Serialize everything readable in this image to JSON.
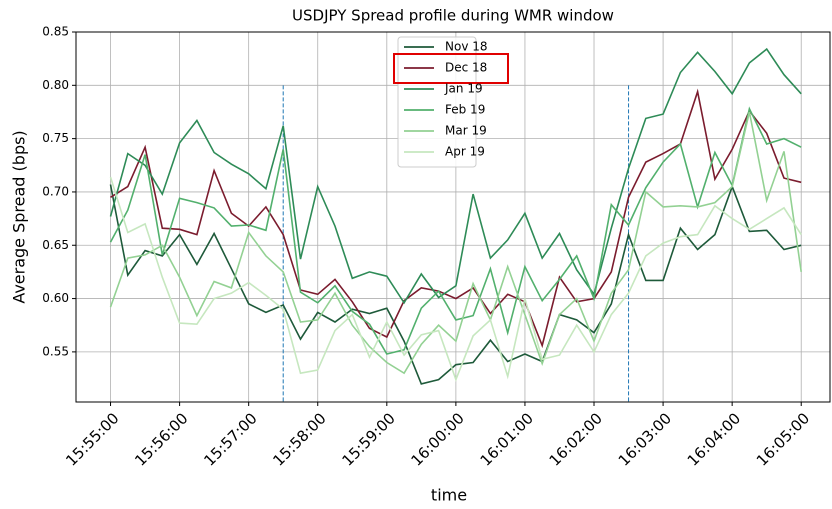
{
  "chart_data": {
    "type": "line",
    "title": "USDJPY Spread profile during WMR window",
    "x_label": "time",
    "y_label": "Average Spread (bps)",
    "x": [
      "15:55:00",
      "15:55:15",
      "15:55:30",
      "15:55:45",
      "15:56:00",
      "15:56:15",
      "15:56:30",
      "15:56:45",
      "15:57:00",
      "15:57:15",
      "15:57:30",
      "15:57:45",
      "15:58:00",
      "15:58:15",
      "15:58:30",
      "15:58:45",
      "15:59:00",
      "15:59:15",
      "15:59:30",
      "15:59:45",
      "16:00:00",
      "16:00:15",
      "16:00:30",
      "16:00:45",
      "16:01:00",
      "16:01:15",
      "16:01:30",
      "16:01:45",
      "16:02:00",
      "16:02:15",
      "16:02:30",
      "16:02:45",
      "16:03:00",
      "16:03:15",
      "16:03:30",
      "16:03:45",
      "16:04:00",
      "16:04:15",
      "16:04:30",
      "16:04:45",
      "16:05:00"
    ],
    "series": [
      {
        "name": "Nov 18",
        "color": "#1e5a3a",
        "values": [
          0.707,
          0.622,
          0.645,
          0.64,
          0.66,
          0.632,
          0.661,
          0.628,
          0.595,
          0.587,
          0.594,
          0.562,
          0.587,
          0.578,
          0.59,
          0.586,
          0.591,
          0.56,
          0.52,
          0.524,
          0.538,
          0.54,
          0.561,
          0.541,
          0.548,
          0.541,
          0.585,
          0.58,
          0.568,
          0.595,
          0.66,
          0.617,
          0.617,
          0.666,
          0.646,
          0.66,
          0.705,
          0.663,
          0.664,
          0.646,
          0.65
        ]
      },
      {
        "name": "Dec 18",
        "color": "#7b1c2e",
        "values": [
          0.695,
          0.705,
          0.742,
          0.666,
          0.665,
          0.66,
          0.72,
          0.68,
          0.668,
          0.686,
          0.66,
          0.608,
          0.604,
          0.618,
          0.597,
          0.572,
          0.564,
          0.598,
          0.61,
          0.607,
          0.6,
          0.61,
          0.586,
          0.604,
          0.597,
          0.556,
          0.62,
          0.597,
          0.6,
          0.625,
          0.695,
          0.728,
          0.736,
          0.745,
          0.794,
          0.712,
          0.74,
          0.776,
          0.755,
          0.713,
          0.709
        ]
      },
      {
        "name": "Jan 19",
        "color": "#2e8b57",
        "values": [
          0.677,
          0.736,
          0.725,
          0.698,
          0.746,
          0.767,
          0.737,
          0.726,
          0.717,
          0.703,
          0.762,
          0.637,
          0.705,
          0.668,
          0.619,
          0.625,
          0.621,
          0.596,
          0.623,
          0.601,
          0.612,
          0.698,
          0.638,
          0.655,
          0.68,
          0.638,
          0.661,
          0.627,
          0.604,
          0.666,
          0.722,
          0.769,
          0.773,
          0.812,
          0.831,
          0.813,
          0.792,
          0.821,
          0.834,
          0.81,
          0.792
        ]
      },
      {
        "name": "Feb 19",
        "color": "#52b06d",
        "values": [
          0.653,
          0.683,
          0.735,
          0.641,
          0.694,
          0.69,
          0.685,
          0.668,
          0.669,
          0.664,
          0.74,
          0.606,
          0.596,
          0.612,
          0.588,
          0.576,
          0.548,
          0.552,
          0.591,
          0.607,
          0.58,
          0.584,
          0.628,
          0.568,
          0.63,
          0.598,
          0.618,
          0.64,
          0.6,
          0.688,
          0.669,
          0.704,
          0.728,
          0.745,
          0.686,
          0.737,
          0.706,
          0.778,
          0.745,
          0.75,
          0.742
        ]
      },
      {
        "name": "Mar 19",
        "color": "#93d193",
        "values": [
          0.592,
          0.638,
          0.641,
          0.65,
          0.62,
          0.584,
          0.616,
          0.61,
          0.662,
          0.64,
          0.625,
          0.578,
          0.58,
          0.605,
          0.575,
          0.555,
          0.54,
          0.53,
          0.557,
          0.575,
          0.56,
          0.614,
          0.58,
          0.63,
          0.585,
          0.539,
          0.585,
          0.6,
          0.56,
          0.605,
          0.627,
          0.7,
          0.686,
          0.687,
          0.686,
          0.69,
          0.705,
          0.775,
          0.692,
          0.738,
          0.625
        ]
      },
      {
        "name": "Apr 19",
        "color": "#c6e7bf",
        "values": [
          0.714,
          0.662,
          0.67,
          0.62,
          0.577,
          0.576,
          0.6,
          0.605,
          0.615,
          0.603,
          0.59,
          0.53,
          0.533,
          0.57,
          0.585,
          0.545,
          0.578,
          0.547,
          0.566,
          0.57,
          0.524,
          0.565,
          0.58,
          0.527,
          0.6,
          0.543,
          0.547,
          0.575,
          0.55,
          0.585,
          0.605,
          0.64,
          0.652,
          0.658,
          0.66,
          0.687,
          0.675,
          0.665,
          0.675,
          0.685,
          0.66
        ]
      }
    ],
    "xlim": [
      "15:54:30",
      "16:05:25"
    ],
    "xticks": [
      "15:55:00",
      "15:56:00",
      "15:57:00",
      "15:58:00",
      "15:59:00",
      "16:00:00",
      "16:01:00",
      "16:02:00",
      "16:03:00",
      "16:04:00",
      "16:05:00"
    ],
    "ylim": [
      0.503,
      0.85
    ],
    "yticks": [
      0.55,
      {
        "value": 0.6,
        "label": "0.60"
      },
      0.65,
      {
        "value": 0.7,
        "label": "0.70"
      },
      0.75,
      {
        "value": 0.8,
        "label": "0.80"
      },
      0.85
    ],
    "vlines": [
      "15:57:30",
      "16:02:30"
    ],
    "vline_color": "#1f77b4",
    "grid": true,
    "legend": "upper center",
    "legend_highlight": 1
  }
}
